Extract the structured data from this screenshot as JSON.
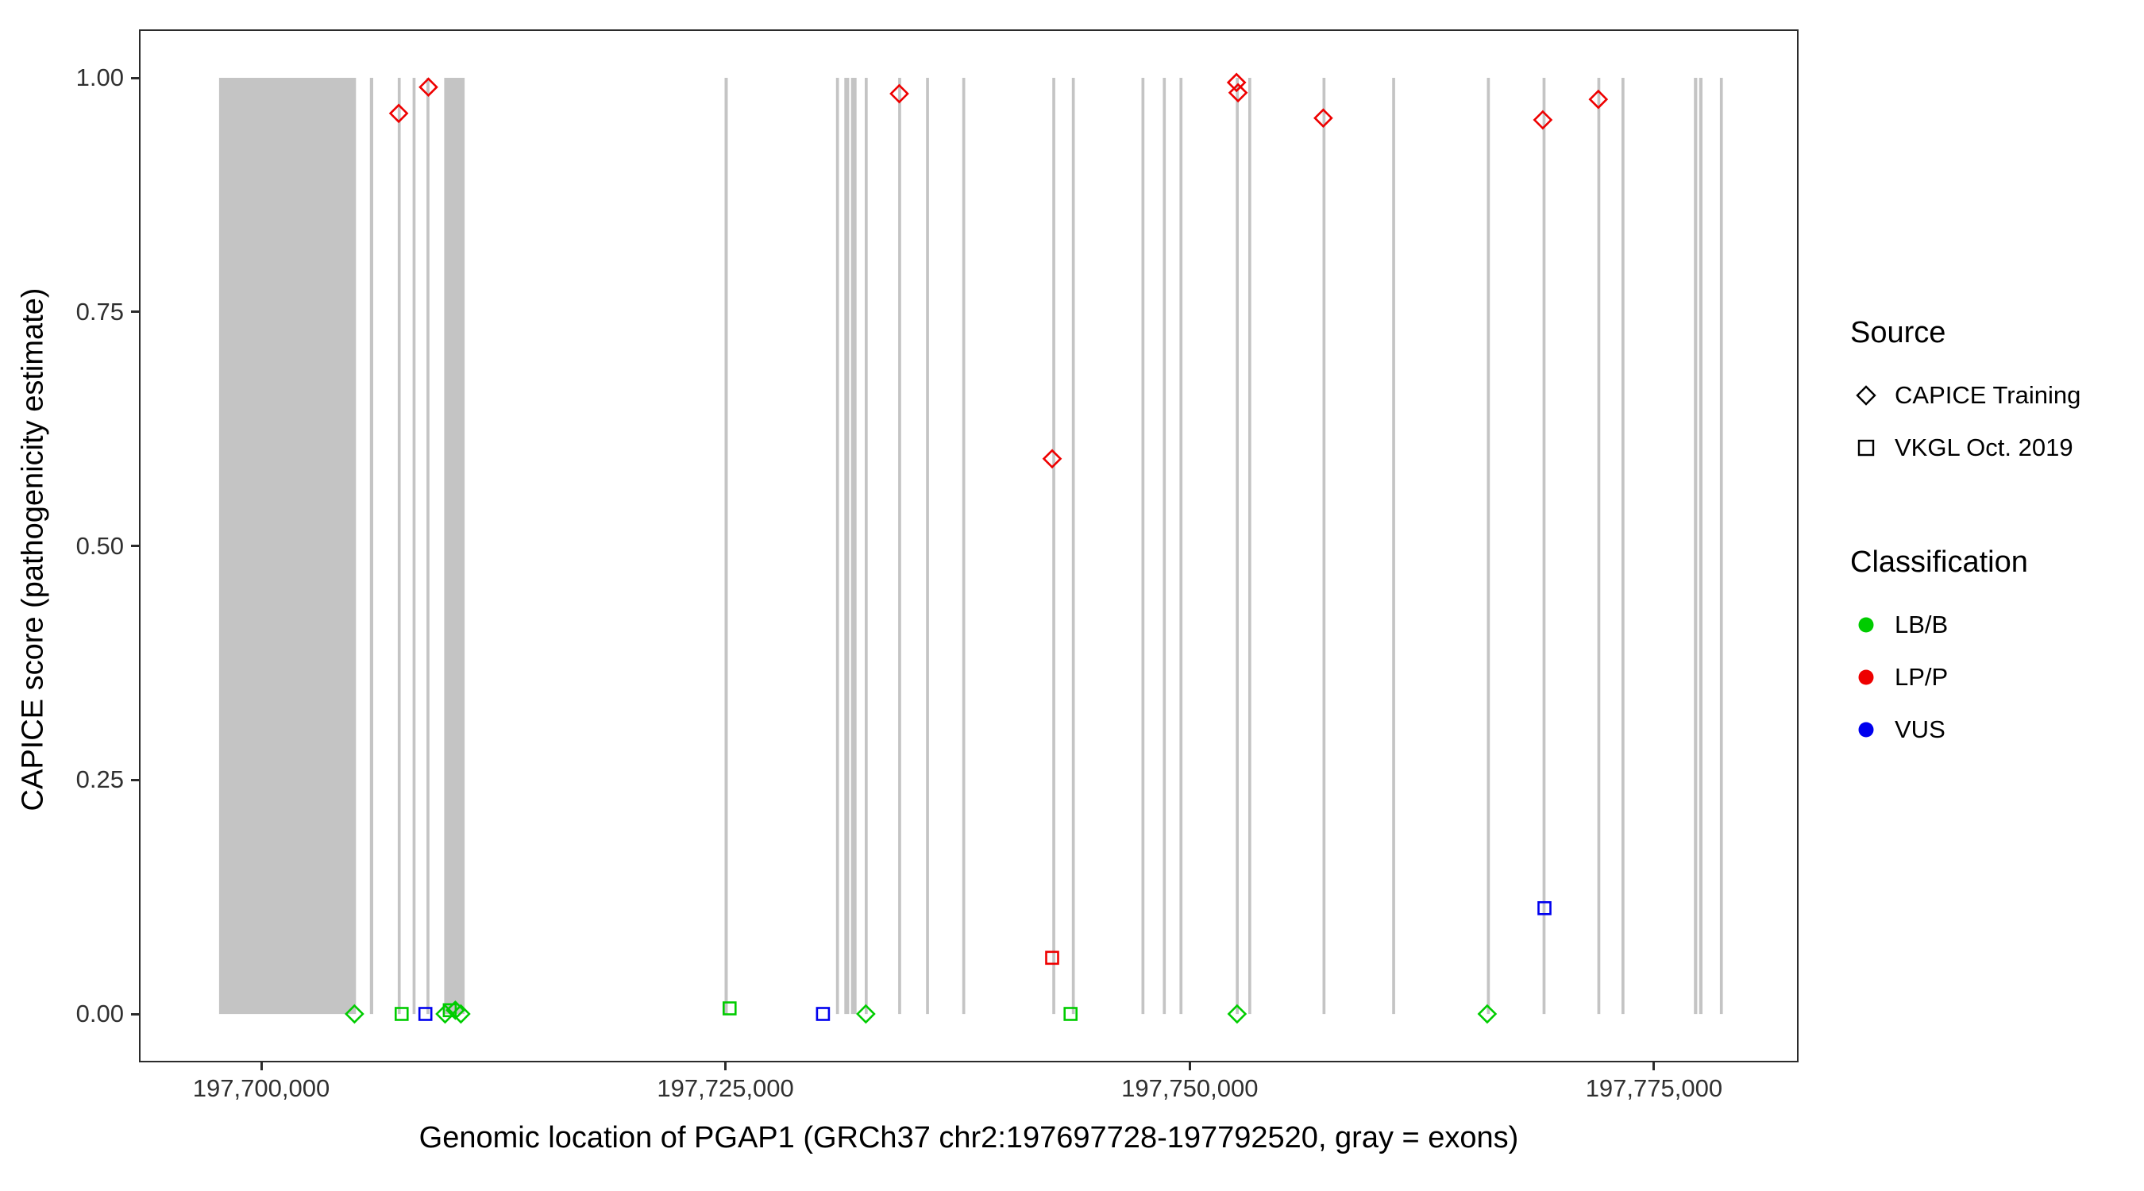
{
  "chart_data": {
    "type": "scatter",
    "title": "",
    "xlabel": "Genomic location of PGAP1 (GRCh37 chr2:197697728-197792520, gray = exons)",
    "ylabel": "CAPICE score (pathogenicity estimate)",
    "gene": {
      "name": "PGAP1",
      "assembly": "GRCh37",
      "region": "chr2:197697728-197792520",
      "note": "gray = exons"
    },
    "x_domain": [
      197693500,
      197782700
    ],
    "y_domain": [
      -0.05,
      1.05
    ],
    "grid": false,
    "legend_position": "right",
    "x_ticks": [
      {
        "value": 197700000,
        "label": "197,700,000"
      },
      {
        "value": 197725000,
        "label": "197,725,000"
      },
      {
        "value": 197750000,
        "label": "197,750,000"
      },
      {
        "value": 197775000,
        "label": "197,775,000"
      }
    ],
    "y_ticks": [
      {
        "value": 0,
        "label": "0.00"
      },
      {
        "value": 0.25,
        "label": "0.25"
      },
      {
        "value": 0.5,
        "label": "0.50"
      },
      {
        "value": 0.75,
        "label": "0.75"
      },
      {
        "value": 1,
        "label": "1.00"
      }
    ],
    "exons": [
      {
        "start": 197697728,
        "end": 197705100
      },
      {
        "start": 197705850,
        "end": 197706030
      },
      {
        "start": 197707350,
        "end": 197707510
      },
      {
        "start": 197708150,
        "end": 197708310
      },
      {
        "start": 197708900,
        "end": 197709060
      },
      {
        "start": 197709850,
        "end": 197710950
      },
      {
        "start": 197724950,
        "end": 197725120
      },
      {
        "start": 197730950,
        "end": 197731110
      },
      {
        "start": 197731400,
        "end": 197731660
      },
      {
        "start": 197731760,
        "end": 197732060
      },
      {
        "start": 197732500,
        "end": 197732660
      },
      {
        "start": 197734300,
        "end": 197734460
      },
      {
        "start": 197735800,
        "end": 197735960
      },
      {
        "start": 197737750,
        "end": 197737910
      },
      {
        "start": 197742600,
        "end": 197742760
      },
      {
        "start": 197743650,
        "end": 197743810
      },
      {
        "start": 197747400,
        "end": 197747560
      },
      {
        "start": 197748550,
        "end": 197748710
      },
      {
        "start": 197749450,
        "end": 197749610
      },
      {
        "start": 197752480,
        "end": 197752640
      },
      {
        "start": 197753150,
        "end": 197753310
      },
      {
        "start": 197757150,
        "end": 197757310
      },
      {
        "start": 197760900,
        "end": 197761060
      },
      {
        "start": 197766000,
        "end": 197766160
      },
      {
        "start": 197769000,
        "end": 197769160
      },
      {
        "start": 197771950,
        "end": 197772110
      },
      {
        "start": 197773250,
        "end": 197773410
      },
      {
        "start": 197777150,
        "end": 197777330
      },
      {
        "start": 197777430,
        "end": 197777610
      },
      {
        "start": 197778550,
        "end": 197778710
      }
    ],
    "points": [
      {
        "pos": 197707400,
        "score": 0.962,
        "source": "CAPICE Training",
        "classification": "LP/P"
      },
      {
        "pos": 197709000,
        "score": 0.99,
        "source": "CAPICE Training",
        "classification": "LP/P"
      },
      {
        "pos": 197734360,
        "score": 0.983,
        "source": "CAPICE Training",
        "classification": "LP/P"
      },
      {
        "pos": 197742590,
        "score": 0.593,
        "source": "CAPICE Training",
        "classification": "LP/P"
      },
      {
        "pos": 197752520,
        "score": 0.995,
        "source": "CAPICE Training",
        "classification": "LP/P"
      },
      {
        "pos": 197752600,
        "score": 0.984,
        "source": "CAPICE Training",
        "classification": "LP/P"
      },
      {
        "pos": 197757190,
        "score": 0.957,
        "source": "CAPICE Training",
        "classification": "LP/P"
      },
      {
        "pos": 197769010,
        "score": 0.955,
        "source": "CAPICE Training",
        "classification": "LP/P"
      },
      {
        "pos": 197772000,
        "score": 0.977,
        "source": "CAPICE Training",
        "classification": "LP/P"
      },
      {
        "pos": 197705020,
        "score": 0.0,
        "source": "CAPICE Training",
        "classification": "LB/B"
      },
      {
        "pos": 197709900,
        "score": 0.0,
        "source": "CAPICE Training",
        "classification": "LB/B"
      },
      {
        "pos": 197710450,
        "score": 0.004,
        "source": "CAPICE Training",
        "classification": "LB/B"
      },
      {
        "pos": 197710750,
        "score": 0.0,
        "source": "CAPICE Training",
        "classification": "LB/B"
      },
      {
        "pos": 197732560,
        "score": 0.0,
        "source": "CAPICE Training",
        "classification": "LB/B"
      },
      {
        "pos": 197752550,
        "score": 0.0,
        "source": "CAPICE Training",
        "classification": "LB/B"
      },
      {
        "pos": 197766020,
        "score": 0.0,
        "source": "CAPICE Training",
        "classification": "LB/B"
      },
      {
        "pos": 197707560,
        "score": 0.0,
        "source": "VKGL Oct. 2019",
        "classification": "LB/B"
      },
      {
        "pos": 197708840,
        "score": 0.0,
        "source": "VKGL Oct. 2019",
        "classification": "VUS"
      },
      {
        "pos": 197710150,
        "score": 0.004,
        "source": "VKGL Oct. 2019",
        "classification": "LB/B"
      },
      {
        "pos": 197725220,
        "score": 0.006,
        "source": "VKGL Oct. 2019",
        "classification": "LB/B"
      },
      {
        "pos": 197730250,
        "score": 0.0,
        "source": "VKGL Oct. 2019",
        "classification": "VUS"
      },
      {
        "pos": 197742590,
        "score": 0.06,
        "source": "VKGL Oct. 2019",
        "classification": "LP/P"
      },
      {
        "pos": 197743580,
        "score": 0.0,
        "source": "VKGL Oct. 2019",
        "classification": "LB/B"
      },
      {
        "pos": 197769100,
        "score": 0.113,
        "source": "VKGL Oct. 2019",
        "classification": "VUS"
      }
    ]
  },
  "legend": {
    "source": {
      "title": "Source",
      "items": [
        {
          "label": "CAPICE Training",
          "shape": "diamond"
        },
        {
          "label": "VKGL Oct. 2019",
          "shape": "square"
        }
      ]
    },
    "classification": {
      "title": "Classification",
      "items": [
        {
          "label": "LB/B",
          "color": "#00cc00"
        },
        {
          "label": "LP/P",
          "color": "#ee0000"
        },
        {
          "label": "VUS",
          "color": "#0000ee"
        }
      ]
    }
  },
  "colors": {
    "LB/B": "#00cc00",
    "LP/P": "#ee0000",
    "VUS": "#0000ee",
    "exon": "#c4c4c4",
    "axis": "#2b2b2b",
    "tick_label": "#303030"
  }
}
